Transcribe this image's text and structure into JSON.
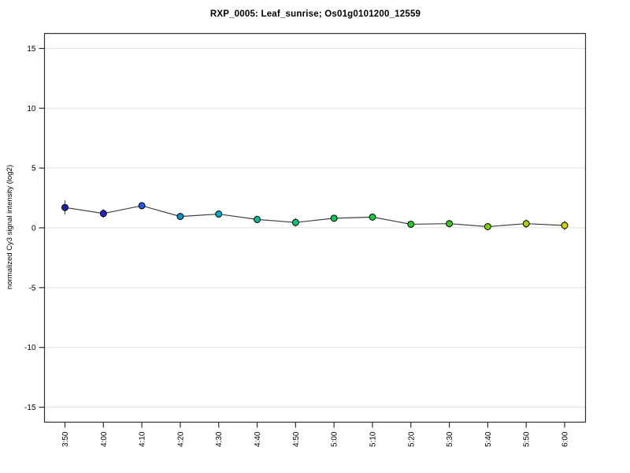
{
  "chart_data": {
    "type": "line",
    "title": "RXP_0005: Leaf_sunrise; Os01g0101200_12559",
    "xlabel": "",
    "ylabel": "normalized Cy3 signal intensity (log2)",
    "categories": [
      "3:50",
      "4:00",
      "4:10",
      "4:20",
      "4:30",
      "4:40",
      "4:50",
      "5:00",
      "5:10",
      "5:20",
      "5:30",
      "5:40",
      "5:50",
      "6:00"
    ],
    "series": [
      {
        "name": "normalized Cy3 signal intensity",
        "values": [
          1.7,
          1.2,
          1.85,
          0.95,
          1.15,
          0.7,
          0.45,
          0.8,
          0.9,
          0.3,
          0.35,
          0.1,
          0.35,
          0.2
        ],
        "errors": [
          0.6,
          0.35,
          0.2,
          0.3,
          0.3,
          0.3,
          0.35,
          0.15,
          0.25,
          0.15,
          0.3,
          0.2,
          0.35,
          0.4
        ],
        "point_colors": [
          "#1F1FAF",
          "#2222C8",
          "#1E5AE6",
          "#0096C8",
          "#00AAC8",
          "#00BE9B",
          "#00C878",
          "#00C850",
          "#14C83C",
          "#28C828",
          "#3CC814",
          "#78D200",
          "#A0D200",
          "#D2D200"
        ]
      }
    ],
    "ylim": [
      -16.25,
      16.25
    ],
    "yticks": [
      -15,
      -10,
      -5,
      0,
      5,
      10,
      15
    ],
    "grid": "horizontal",
    "legend_position": "none",
    "line_color": "#404040",
    "grid_color": "#E2E2E2",
    "box_color": "#2E2E2E",
    "error_bar_color": "#555555",
    "point_outline_color": "#000000",
    "background_color": "#FFFFFF"
  }
}
